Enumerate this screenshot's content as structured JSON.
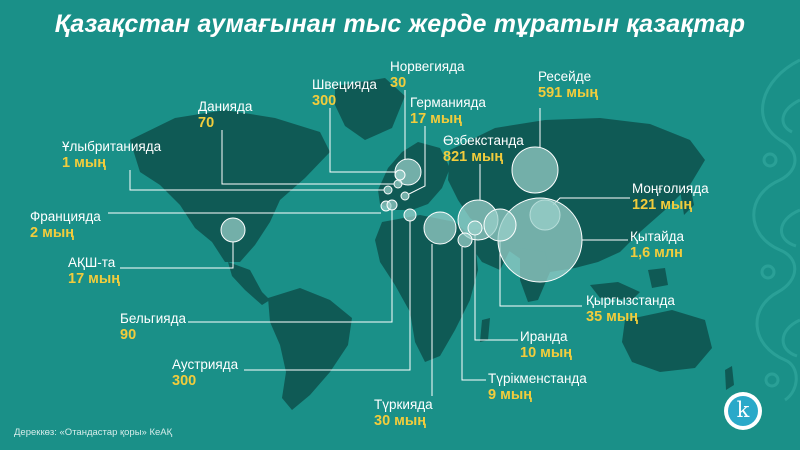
{
  "title": "Қазақстан аумағынан тыс жерде тұратын қазақтар",
  "source": "Дереккөз: «Отандастар қоры» КеАҚ",
  "logo_letter": "k",
  "colors": {
    "background": "#1a9088",
    "land": "#0f5a55",
    "bubble": "#9ad0cb",
    "value_text": "#f2cc3c",
    "leader_line": "#ffffff"
  },
  "countries": [
    {
      "id": "norway",
      "name": "Норвегияда",
      "value": "30"
    },
    {
      "id": "sweden",
      "name": "Швецияда",
      "value": "300"
    },
    {
      "id": "russia",
      "name": "Ресейде",
      "value": "591 мың"
    },
    {
      "id": "denmark",
      "name": "Данияда",
      "value": "70"
    },
    {
      "id": "germany",
      "name": "Германияда",
      "value": "17 мың"
    },
    {
      "id": "uk",
      "name": "Ұлыбританияда",
      "value": "1 мың"
    },
    {
      "id": "uzbekistan",
      "name": "Өзбекстанда",
      "value": "821 мың"
    },
    {
      "id": "mongolia",
      "name": "Моңғолияда",
      "value": "121 мың"
    },
    {
      "id": "france",
      "name": "Францияда",
      "value": "2 мың"
    },
    {
      "id": "china",
      "name": "Қытайда",
      "value": "1,6 млн"
    },
    {
      "id": "usa",
      "name": "АҚШ-та",
      "value": "17 мың"
    },
    {
      "id": "kyrgyzstan",
      "name": "Қырғызстанда",
      "value": "35 мың"
    },
    {
      "id": "belgium",
      "name": "Бельгияда",
      "value": "90"
    },
    {
      "id": "iran",
      "name": "Иранда",
      "value": "10 мың"
    },
    {
      "id": "austria",
      "name": "Аустрияда",
      "value": "300"
    },
    {
      "id": "turkmenistan",
      "name": "Түрікменстанда",
      "value": "9 мың"
    },
    {
      "id": "turkey",
      "name": "Түркияда",
      "value": "30 мың"
    }
  ]
}
